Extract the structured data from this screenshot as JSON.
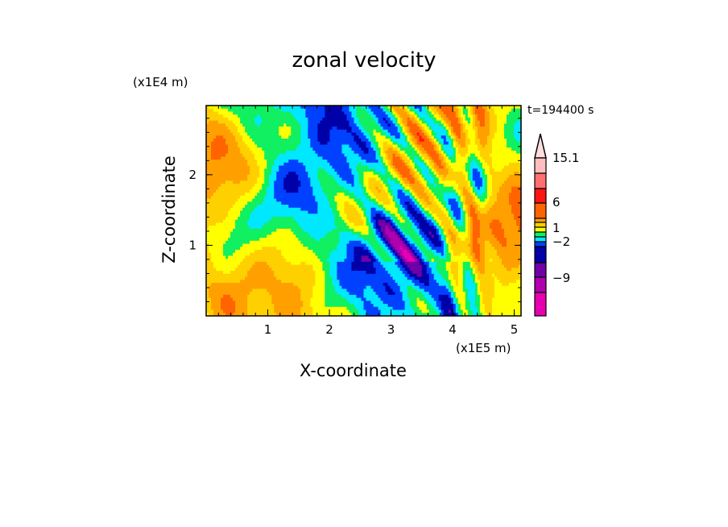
{
  "chart_data": {
    "type": "heatmap",
    "title": "zonal velocity",
    "xlabel": "X-coordinate",
    "ylabel": "Z-coordinate",
    "x_unit": "(x1E5 m)",
    "y_unit": "(x1E4 m)",
    "time_label": "t=194400 s",
    "xlim": [
      0,
      5.11
    ],
    "ylim": [
      0,
      2.98
    ],
    "xticks": [
      "1",
      "2",
      "3",
      "4",
      "5"
    ],
    "yticks": [
      "1",
      "2"
    ],
    "colorbar": {
      "labels": [
        "15.1",
        "6",
        "1",
        "−2",
        "−9"
      ],
      "label_values": [
        15.1,
        6,
        1,
        -2,
        -9
      ],
      "colors": [
        "#ffbfbf",
        "#ff7070",
        "#ff1414",
        "#ff6400",
        "#ffa000",
        "#ffd000",
        "#ffff00",
        "#10f060",
        "#00e8ff",
        "#0040ff",
        "#0000a8",
        "#7000a8",
        "#b000b0",
        "#e800b0"
      ],
      "extend_color": "#ffdddd"
    }
  }
}
